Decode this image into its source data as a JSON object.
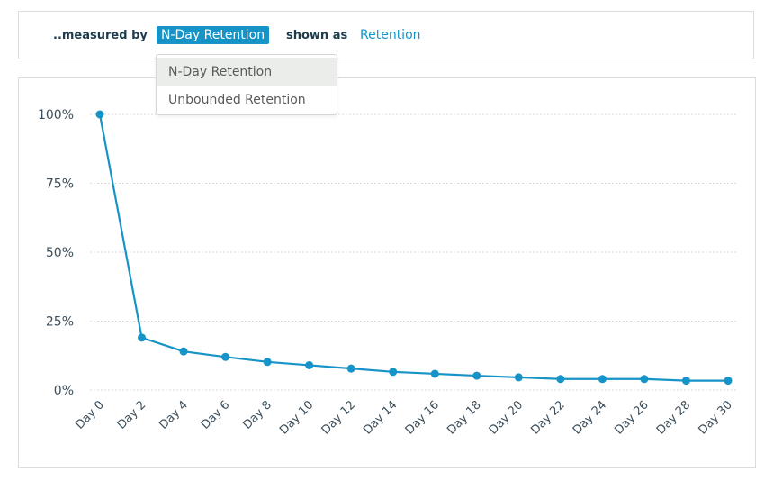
{
  "controls": {
    "measured_label": "..measured by",
    "metric_selected": "N-Day Retention",
    "shown_label": "shown as",
    "display_mode": "Retention"
  },
  "dropdown": {
    "options": [
      "N-Day Retention",
      "Unbounded Retention"
    ],
    "highlighted": "N-Day Retention"
  },
  "colors": {
    "accent": "#1693c7",
    "line": "#1693c7",
    "grid": "#d9d9d9"
  },
  "chart_data": {
    "type": "line",
    "categories": [
      "Day 0",
      "Day 2",
      "Day 4",
      "Day 6",
      "Day 8",
      "Day 10",
      "Day 12",
      "Day 14",
      "Day 16",
      "Day 18",
      "Day 20",
      "Day 22",
      "Day 24",
      "Day 26",
      "Day 28",
      "Day 30"
    ],
    "series": [
      {
        "values": [
          100,
          19,
          14,
          12,
          10.2,
          9,
          7.8,
          6.6,
          5.9,
          5.2,
          4.6,
          4,
          4,
          4,
          3.4,
          3.4
        ]
      }
    ],
    "y_ticks": [
      "0%",
      "25%",
      "50%",
      "75%",
      "100%"
    ],
    "ylim": [
      0,
      100
    ],
    "grid": true,
    "grid_style": "dotted horizontal"
  }
}
